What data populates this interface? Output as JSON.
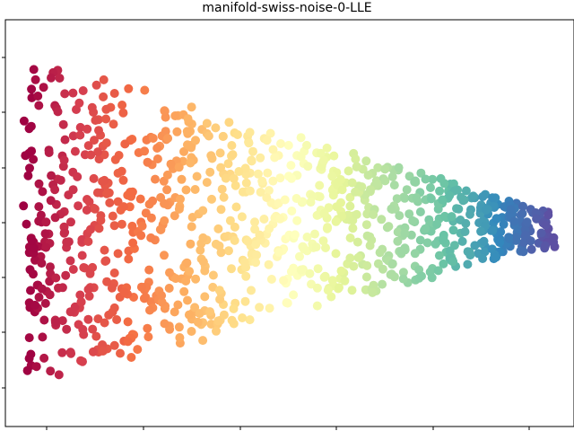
{
  "chart_data": {
    "type": "scatter",
    "title": "manifold-swiss-noise-0-LLE",
    "xlabel": "",
    "ylabel": "",
    "grid": false,
    "legend": "none",
    "x_ticks": 6,
    "y_ticks": 7,
    "tick_labels_shown": false,
    "colormap": "Spectral",
    "colormap_stops": [
      "#9e0142",
      "#d53e4f",
      "#f46d43",
      "#fdae61",
      "#fee08b",
      "#ffffbf",
      "#e6f598",
      "#abdda4",
      "#66c2a5",
      "#3288bd",
      "#5e4fa2"
    ],
    "point_count": 1000,
    "series": [
      {
        "shape_description": "triangular band, tall at left, narrowing to a point at right; color varies left to right along Spectral map",
        "x_range": [
          0.0,
          1.0
        ],
        "half_width_at_left": 0.46,
        "half_width_at_right": 0.05,
        "center_y_at_left": 0.5,
        "center_y_at_right": 0.52
      }
    ]
  }
}
